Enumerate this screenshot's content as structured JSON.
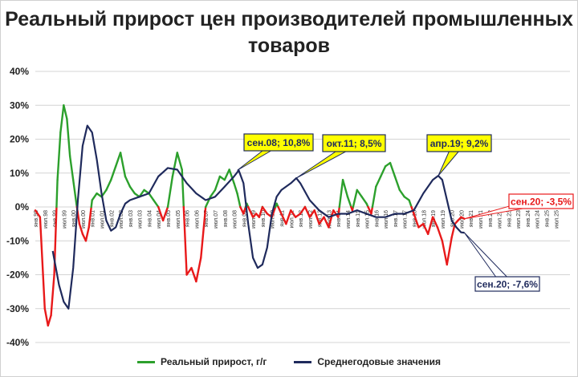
{
  "chart_data": {
    "type": "line",
    "title": "Реальный прирост цен производителей промышленных товаров",
    "ylim": [
      -40,
      40
    ],
    "y_ticks": [
      "40%",
      "30%",
      "20%",
      "10%",
      "0%",
      "-10%",
      "-20%",
      "-30%",
      "-40%"
    ],
    "x_range": [
      1998.0,
      2026.25
    ],
    "x_tick_labels": [
      "янв.98",
      "июл.98",
      "янв.99",
      "июл.99",
      "янв.00",
      "июл.00",
      "янв.01",
      "июл.01",
      "янв.02",
      "июл.02",
      "янв.03",
      "июл.03",
      "янв.04",
      "июл.04",
      "янв.05",
      "июл.05",
      "янв.06",
      "июл.06",
      "янв.07",
      "июл.07",
      "янв.08",
      "июл.08",
      "янв.09",
      "июл.09",
      "янв.10",
      "июл.10",
      "янв.11",
      "июл.11",
      "янв.12",
      "июл.12",
      "янв.13",
      "июл.13",
      "янв.14",
      "июл.14",
      "янв.15",
      "июл.15",
      "янв.16",
      "июл.16",
      "янв.17",
      "июл.17",
      "янв.18",
      "июл.18",
      "янв.19",
      "июл.19",
      "янв.20",
      "июл.20",
      "янв.21",
      "июл.21",
      "янв.22",
      "июл.22",
      "янв.23",
      "июл.23",
      "янв.24",
      "июл.24",
      "янв.25",
      "июл.25"
    ],
    "grid": true,
    "legend_position": "bottom",
    "series": [
      {
        "name": "Реальный прирост, г/г",
        "color_positive": "#2ca02c",
        "color_negative": "#e8191a",
        "x": [
          1998.0,
          1998.25,
          1998.5,
          1998.67,
          1998.83,
          1999.0,
          1999.17,
          1999.33,
          1999.5,
          1999.67,
          1999.83,
          2000.0,
          2000.17,
          2000.33,
          2000.5,
          2000.67,
          2000.83,
          2001.0,
          2001.25,
          2001.5,
          2001.75,
          2002.0,
          2002.25,
          2002.5,
          2002.75,
          2003.0,
          2003.25,
          2003.5,
          2003.75,
          2004.0,
          2004.25,
          2004.5,
          2004.75,
          2005.0,
          2005.25,
          2005.5,
          2005.75,
          2006.0,
          2006.25,
          2006.5,
          2006.75,
          2007.0,
          2007.25,
          2007.5,
          2007.75,
          2008.0,
          2008.25,
          2008.5,
          2008.67,
          2008.83,
          2009.0,
          2009.17,
          2009.33,
          2009.5,
          2009.67,
          2009.83,
          2010.0,
          2010.25,
          2010.5,
          2010.75,
          2011.0,
          2011.25,
          2011.5,
          2011.75,
          2012.0,
          2012.25,
          2012.5,
          2012.75,
          2013.0,
          2013.25,
          2013.5,
          2013.75,
          2014.0,
          2014.25,
          2014.5,
          2014.75,
          2015.0,
          2015.25,
          2015.5,
          2015.75,
          2016.0,
          2016.25,
          2016.5,
          2016.75,
          2017.0,
          2017.25,
          2017.5,
          2017.75,
          2018.0,
          2018.25,
          2018.5,
          2018.75,
          2019.0,
          2019.25,
          2019.5,
          2019.75,
          2020.0,
          2020.17,
          2020.33,
          2020.5,
          2020.67
        ],
        "y": [
          -1,
          -3,
          -30,
          -35,
          -32,
          -20,
          8,
          22,
          30,
          26,
          15,
          8,
          1,
          -5,
          -8,
          -10,
          -6,
          2,
          4,
          3,
          5,
          8,
          12,
          16,
          9,
          6,
          4,
          3,
          5,
          4,
          2,
          0,
          -4,
          0,
          9,
          16,
          11,
          -20,
          -18,
          -22,
          -15,
          0,
          3,
          5,
          9,
          8,
          11,
          7,
          4,
          0,
          -2,
          1,
          -1,
          -3,
          -2,
          -3,
          0,
          -2,
          -3,
          1,
          -2,
          -5,
          -1,
          -3,
          -2,
          0,
          -3,
          -1,
          -5,
          -3,
          -6,
          -1,
          -3,
          8,
          3,
          -1,
          5,
          3,
          1,
          -2,
          6,
          9,
          12,
          13,
          9,
          5,
          3,
          2,
          -2,
          -6,
          -5,
          -8,
          -3,
          -6,
          -10,
          -17,
          -9,
          -5,
          -4,
          -3,
          -3.5
        ]
      },
      {
        "name": "Среднегодовые значения",
        "color": "#1f2a5c",
        "x": [
          1998.92,
          1999.25,
          1999.5,
          1999.75,
          2000.0,
          2000.25,
          2000.5,
          2000.75,
          2001.0,
          2001.25,
          2001.5,
          2001.75,
          2002.0,
          2002.25,
          2002.5,
          2002.75,
          2003.0,
          2003.5,
          2004.0,
          2004.5,
          2005.0,
          2005.5,
          2006.0,
          2006.5,
          2007.0,
          2007.5,
          2008.0,
          2008.5,
          2008.75,
          2009.0,
          2009.25,
          2009.5,
          2009.75,
          2010.0,
          2010.25,
          2010.5,
          2010.75,
          2011.0,
          2011.5,
          2011.79,
          2012.0,
          2012.5,
          2013.0,
          2013.5,
          2014.0,
          2014.5,
          2015.0,
          2015.5,
          2016.0,
          2016.5,
          2017.0,
          2017.5,
          2018.0,
          2018.5,
          2019.0,
          2019.29,
          2019.5,
          2019.75,
          2020.0,
          2020.25,
          2020.5,
          2020.67
        ],
        "y": [
          -13,
          -23,
          -28,
          -30,
          -18,
          2,
          18,
          24,
          22,
          14,
          4,
          -4,
          -7,
          -6,
          -2,
          1,
          2,
          3,
          4,
          9,
          11.5,
          11,
          7,
          4,
          2,
          3,
          6,
          9,
          10.8,
          7,
          -5,
          -15,
          -18,
          -17,
          -12,
          -2,
          3,
          5,
          7,
          8.5,
          7,
          2,
          -1,
          -3,
          -2,
          -2,
          -1,
          -2,
          -3,
          -3,
          -2,
          -2,
          -1,
          4,
          8,
          9.2,
          8,
          2,
          -4,
          -6,
          -7.5,
          -7.6
        ]
      }
    ],
    "annotations": [
      {
        "text": "сен.08; 10,8%",
        "x": 2008.67,
        "y": 10.8,
        "style": "yellow-callout"
      },
      {
        "text": "окт.11; 8,5%",
        "x": 2011.79,
        "y": 8.5,
        "style": "yellow-callout"
      },
      {
        "text": "апр.19; 9,2%",
        "x": 2019.29,
        "y": 9.2,
        "style": "yellow-callout"
      },
      {
        "text": "сен.20; -3,5%",
        "x": 2020.67,
        "y": -3.5,
        "style": "red-callout"
      },
      {
        "text": "сен.20; -7,6%",
        "x": 2020.67,
        "y": -7.6,
        "style": "navy-callout"
      }
    ]
  },
  "legend": {
    "item1_label": "Реальный прирост, г/г",
    "item2_label": "Среднегодовые значения"
  }
}
